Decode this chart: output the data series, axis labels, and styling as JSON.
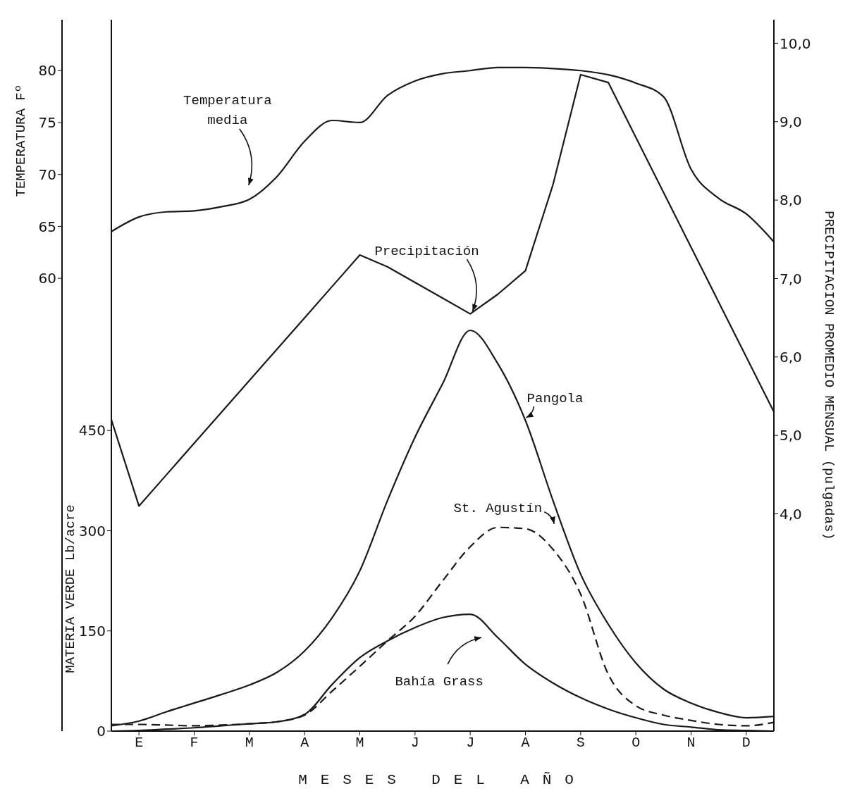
{
  "chart_data": {
    "type": "line",
    "xlabel": "MESES DEL AÑO",
    "ylabel": "MATERIA VERDE Lb/acre",
    "y2label": "PRECIPITACION PROMEDIO MENSUAL (pulgadas)",
    "y3label": "TEMPERATURA Fº",
    "categories": [
      null,
      "E",
      null,
      "F",
      null,
      "M",
      null,
      "A",
      null,
      "M",
      null,
      "J",
      null,
      "J",
      null,
      "A",
      null,
      "S",
      null,
      "O",
      null,
      "N",
      null,
      "D",
      null
    ],
    "ylim": [
      0,
      1065
    ],
    "yticks": [
      0,
      150,
      300,
      450
    ],
    "y2lim": [
      1.23,
      10.3
    ],
    "y2ticks": [
      {
        "value": 4,
        "label": "4,0"
      },
      {
        "value": 5,
        "label": "5,0"
      },
      {
        "value": 6,
        "label": "6,0"
      },
      {
        "value": 7,
        "label": "7,0"
      },
      {
        "value": 8,
        "label": "8,0"
      },
      {
        "value": 9,
        "label": "9,0"
      },
      {
        "value": 10,
        "label": "10,0"
      }
    ],
    "y3lim": [
      16.4,
      84.9
    ],
    "y3ticks": [
      60,
      65,
      70,
      75,
      80
    ],
    "marker": "none",
    "series": [
      {
        "name": "Temperatura media",
        "color": "#1a1a1a",
        "axis": "y3",
        "line_style": "solid",
        "values": [
          64.5,
          65.9,
          66.4,
          66.5,
          66.9,
          67.6,
          69.8,
          73.2,
          75.2,
          75.0,
          77.6,
          79.0,
          79.7,
          80.0,
          80.3,
          80.3,
          80.2,
          80.0,
          79.6,
          78.8,
          77.5,
          70.5,
          67.7,
          66.2,
          63.5
        ]
      },
      {
        "name": "Precipitación",
        "color": "#1a1a1a",
        "axis": "y2",
        "line_style": "solid",
        "values": [
          5.2,
          4.1,
          4.5,
          4.9,
          5.3,
          5.7,
          6.1,
          6.5,
          6.9,
          7.3,
          7.15,
          6.95,
          6.75,
          6.55,
          6.8,
          7.1,
          8.2,
          9.6,
          9.5,
          8.8,
          8.1,
          7.4,
          6.7,
          6.0,
          5.3
        ]
      },
      {
        "name": "Pangola",
        "color": "#1a1a1a",
        "line_style": "solid",
        "values": [
          8,
          15,
          29,
          42,
          55,
          69,
          88,
          120,
          170,
          240,
          345,
          440,
          520,
          600,
          550,
          465,
          345,
          235,
          160,
          102,
          63,
          42,
          28,
          20,
          22
        ]
      },
      {
        "name": "St. Agustín",
        "color": "#1a1a1a",
        "line_style": "dashed",
        "values": [
          10,
          10,
          9,
          8,
          9,
          11,
          14,
          24,
          60,
          97,
          135,
          172,
          225,
          276,
          305,
          303,
          272,
          205,
          85,
          38,
          24,
          16,
          10,
          8,
          13
        ]
      },
      {
        "name": "Bahía Grass",
        "color": "#1a1a1a",
        "line_style": "solid",
        "values": [
          0,
          1,
          3,
          5,
          8,
          11,
          14,
          25,
          70,
          110,
          135,
          155,
          170,
          175,
          140,
          100,
          72,
          50,
          33,
          20,
          10,
          6,
          2,
          1,
          0
        ]
      }
    ]
  }
}
